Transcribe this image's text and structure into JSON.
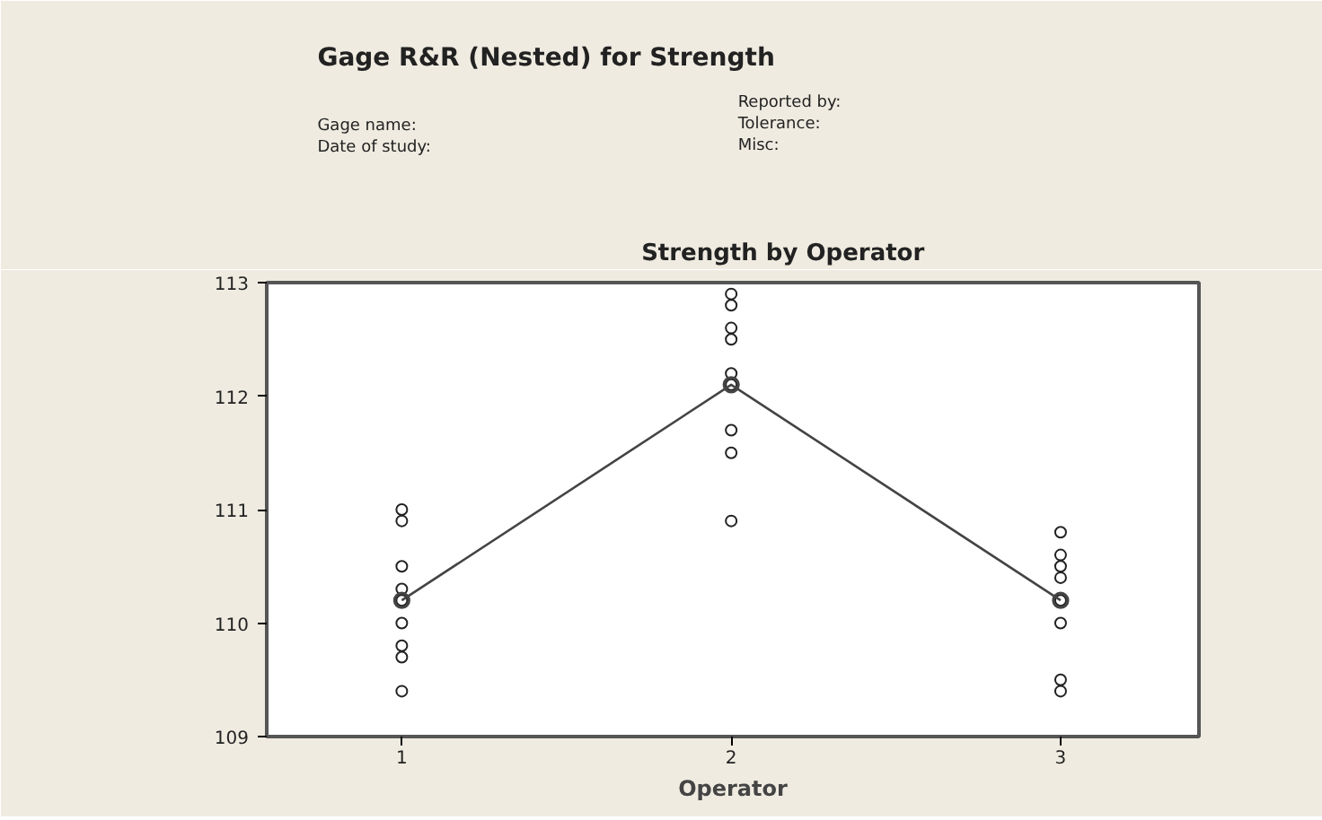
{
  "chart_data": {
    "type": "scatter",
    "title": "Gage R&R (Nested) for Strength",
    "subtitle": "Strength by Operator",
    "xlabel": "Operator",
    "categories": [
      "1",
      "2",
      "3"
    ],
    "series": [
      {
        "color": "#222222",
        "marker": "circle",
        "x": [
          "1",
          "1",
          "1",
          "1",
          "1",
          "1",
          "1",
          "1",
          "1",
          "2",
          "2",
          "2",
          "2",
          "2",
          "2",
          "2",
          "2",
          "2",
          "3",
          "3",
          "3",
          "3",
          "3",
          "3",
          "3",
          "3"
        ],
        "values": [
          111.0,
          110.9,
          110.5,
          110.3,
          110.2,
          110.0,
          109.8,
          109.7,
          109.4,
          112.9,
          112.8,
          112.6,
          112.5,
          112.2,
          112.1,
          111.7,
          111.5,
          110.9,
          110.8,
          110.6,
          110.5,
          110.4,
          110.2,
          110.0,
          109.5,
          109.4
        ]
      },
      {
        "type": "line",
        "color": "#444444",
        "marker": "circle",
        "values": [
          110.2,
          112.1,
          110.2
        ]
      }
    ],
    "ylim": [
      109,
      113
    ],
    "yticks": [
      109,
      110,
      111,
      112,
      113
    ],
    "grid": false,
    "annotations": [
      "Gage name:",
      "Date of study:",
      "Reported by:",
      "Tolerance:",
      "Misc:"
    ]
  }
}
